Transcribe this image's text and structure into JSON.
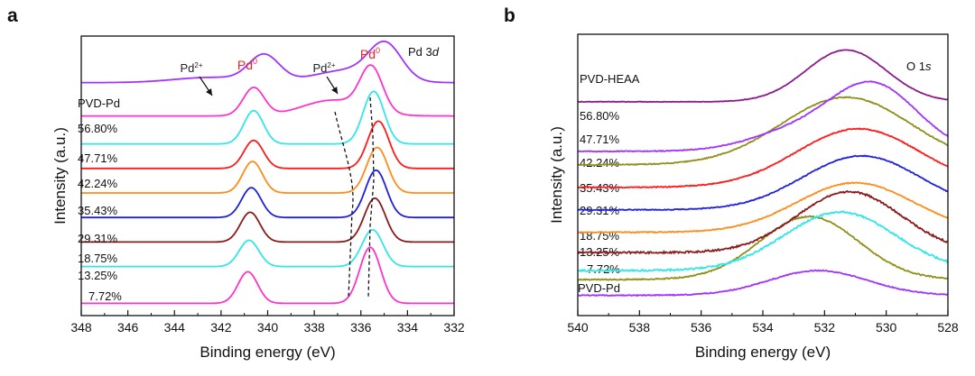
{
  "chart_data": [
    {
      "type": "line",
      "panel_label": "a",
      "title": "Pd 3d",
      "xlabel": "Binding energy (eV)",
      "ylabel": "Intensity (a.u.)",
      "xlim": [
        348,
        332
      ],
      "xticks": [
        "348",
        "346",
        "344",
        "342",
        "340",
        "338",
        "336",
        "334",
        "332"
      ],
      "yticks": [],
      "annotations": [
        {
          "label": "Pd2+",
          "text": "Pd",
          "sup": "2+",
          "color": "#222222"
        },
        {
          "label": "Pd0",
          "text": "Pd",
          "sup": "0",
          "color": "#e8242a"
        },
        {
          "label": "Pd2+",
          "text": "Pd",
          "sup": "2+",
          "color": "#222222"
        },
        {
          "label": "Pd0",
          "text": "Pd",
          "sup": "0",
          "color": "#e8242a"
        }
      ],
      "series": [
        {
          "name": "7.72%",
          "color": "#ff33cc",
          "baseline": 0.0,
          "peaks": [
            [
              340.85,
              0.9,
              0.42
            ],
            [
              335.6,
              1.6,
              0.45
            ]
          ]
        },
        {
          "name": "13.25%",
          "color": "#33e6e6",
          "baseline": 1.05,
          "peaks": [
            [
              340.8,
              0.75,
              0.42
            ],
            [
              335.5,
              1.05,
              0.45
            ]
          ]
        },
        {
          "name": "18.75%",
          "color": "#8b1a1a",
          "baseline": 1.75,
          "peaks": [
            [
              340.75,
              0.85,
              0.42
            ],
            [
              335.4,
              1.25,
              0.45
            ]
          ]
        },
        {
          "name": "29.31%",
          "color": "#1f1fe0",
          "baseline": 2.45,
          "peaks": [
            [
              340.7,
              0.85,
              0.42
            ],
            [
              335.35,
              1.35,
              0.45
            ]
          ]
        },
        {
          "name": "35.43%",
          "color": "#ff8c1a",
          "baseline": 3.15,
          "peaks": [
            [
              340.65,
              0.9,
              0.42
            ],
            [
              335.3,
              1.3,
              0.45
            ]
          ]
        },
        {
          "name": "42.24%",
          "color": "#ff1a1a",
          "baseline": 3.85,
          "peaks": [
            [
              340.6,
              0.8,
              0.42
            ],
            [
              335.25,
              1.35,
              0.45
            ]
          ]
        },
        {
          "name": "47.71%",
          "color": "#33e6e6",
          "baseline": 4.55,
          "peaks": [
            [
              340.6,
              0.95,
              0.42
            ],
            [
              335.45,
              1.5,
              0.45
            ]
          ]
        },
        {
          "name": "56.80%",
          "color": "#ff33cc",
          "baseline": 5.35,
          "peaks": [
            [
              340.6,
              0.8,
              0.45
            ],
            [
              335.55,
              1.25,
              0.48
            ],
            [
              337.2,
              0.45,
              1.3
            ]
          ]
        },
        {
          "name": "PVD-Pd",
          "color": "#a033ff",
          "baseline": 6.3,
          "peaks": [
            [
              340.15,
              0.75,
              0.65
            ],
            [
              334.95,
              1.0,
              0.7
            ],
            [
              342.4,
              0.15,
              1.6
            ],
            [
              336.6,
              0.35,
              1.4
            ]
          ]
        }
      ]
    },
    {
      "type": "line",
      "panel_label": "b",
      "title": "O 1s",
      "xlabel": "Binding energy (eV)",
      "ylabel": "Intensity (a.u.)",
      "xlim": [
        540,
        528
      ],
      "xticks": [
        "540",
        "538",
        "536",
        "534",
        "532",
        "530",
        "528"
      ],
      "yticks": [],
      "series": [
        {
          "name": "PVD-Pd",
          "color": "#a033ff",
          "baseline": 0.0,
          "peaks": [
            [
              532.2,
              0.55,
              1.6
            ]
          ],
          "noise": 0.02
        },
        {
          "name": "7.72%",
          "color": "#8f8f1a",
          "baseline": 0.35,
          "peaks": [
            [
              532.5,
              1.4,
              1.6
            ]
          ],
          "noise": 0.025
        },
        {
          "name": "13.25%",
          "color": "#33e6e6",
          "baseline": 0.55,
          "peaks": [
            [
              531.5,
              1.3,
              1.8
            ]
          ],
          "noise": 0.04
        },
        {
          "name": "18.75%",
          "color": "#8b1a1a",
          "baseline": 0.95,
          "peaks": [
            [
              531.2,
              1.35,
              1.7
            ]
          ],
          "noise": 0.04
        },
        {
          "name": "29.31%",
          "color": "#ff8c1a",
          "baseline": 1.4,
          "peaks": [
            [
              531.0,
              1.1,
              1.9
            ]
          ],
          "noise": 0.02
        },
        {
          "name": "35.43%",
          "color": "#1f1fe0",
          "baseline": 1.9,
          "peaks": [
            [
              530.8,
              1.2,
              1.9
            ]
          ],
          "noise": 0.02
        },
        {
          "name": "42.24%",
          "color": "#ff1a1a",
          "baseline": 2.4,
          "peaks": [
            [
              530.9,
              1.3,
              2.0
            ]
          ],
          "noise": 0.02
        },
        {
          "name": "47.71%",
          "color": "#8f8f1a",
          "baseline": 2.9,
          "peaks": [
            [
              531.3,
              1.5,
              2.1
            ]
          ],
          "noise": 0.02
        },
        {
          "name": "56.80%",
          "color": "#a033ff",
          "baseline": 3.2,
          "peaks": [
            [
              530.4,
              1.45,
              1.4
            ],
            [
              533.0,
              0.4,
              1.5
            ]
          ],
          "noise": 0.02
        },
        {
          "name": "PVD-HEAA",
          "color": "#8b1a8b",
          "baseline": 4.3,
          "peaks": [
            [
              531.3,
              1.15,
              1.3
            ]
          ],
          "noise": 0.01
        }
      ]
    }
  ]
}
